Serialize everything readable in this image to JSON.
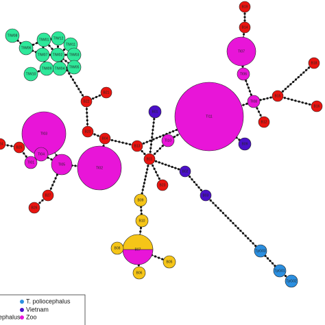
{
  "nodes": [
    {
      "label": "B19",
      "color": "#e8140f"
    },
    {
      "label": "B14",
      "color": "#e8140f"
    },
    {
      "label": "TI07",
      "color": "#e815d8"
    },
    {
      "label": "TI06",
      "color": "#e815d8"
    },
    {
      "label": "B18",
      "color": "#e8140f"
    },
    {
      "label": "B15",
      "color": "#e8140f"
    },
    {
      "label": "B16",
      "color": "#e8140f"
    },
    {
      "label": "TI08",
      "color": "#e815d8"
    },
    {
      "label": "B12",
      "color": "#e8140f"
    },
    {
      "label": "TI11",
      "color": "#e815d8"
    },
    {
      "label": "B09",
      "color": "#4a10c8"
    },
    {
      "label": "B01",
      "color": "#4a10c8"
    },
    {
      "label": "TI10",
      "color": "#e815d8"
    },
    {
      "label": "B13",
      "color": "#e8140f"
    },
    {
      "label": "B11",
      "color": "#e8140f"
    },
    {
      "label": "B23",
      "color": "#e8140f"
    },
    {
      "label": "B02",
      "color": "#4a10c8"
    },
    {
      "label": "B03",
      "color": "#4a10c8"
    },
    {
      "label": "B04",
      "color": "#e8140f"
    },
    {
      "label": "B20",
      "color": "#e8140f"
    },
    {
      "label": "B22",
      "color": "#e8140f"
    },
    {
      "label": "B21",
      "color": "#e8140f"
    },
    {
      "label": "TI03",
      "color": "#e815d8"
    },
    {
      "label": "TI02",
      "color": "#e815d8"
    },
    {
      "label": "TI05",
      "color": "#e815d8"
    },
    {
      "label": "TI04",
      "color": "#e815d8"
    },
    {
      "label": "TI01",
      "color": "#e815d8"
    },
    {
      "label": "B25",
      "color": "#e8140f"
    },
    {
      "label": "B24",
      "color": "#e8140f"
    },
    {
      "label": "B27",
      "color": "#e8140f"
    },
    {
      "label": "B26",
      "color": "#e8140f"
    },
    {
      "label": "B09",
      "color": "#f5c518"
    },
    {
      "label": "B10",
      "color": "#f5c518"
    },
    {
      "label": "B07",
      "color": "#f5c518",
      "color2": "#e815d8"
    },
    {
      "label": "B08",
      "color": "#f5c518"
    },
    {
      "label": "B05",
      "color": "#f5c518"
    },
    {
      "label": "B06",
      "color": "#f5c518"
    },
    {
      "label": "TpG03",
      "color": "#2b8fe0"
    },
    {
      "label": "TpG01",
      "color": "#2b8fe0"
    },
    {
      "label": "TpG02",
      "color": "#2b8fe0"
    },
    {
      "label": "TIW08",
      "color": "#2ee89a"
    },
    {
      "label": "TIW06",
      "color": "#2ee89a"
    },
    {
      "label": "TIW10",
      "color": "#2ee89a"
    },
    {
      "label": "TIW07",
      "color": "#2ee89a"
    },
    {
      "label": "TIW01",
      "color": "#2ee89a"
    },
    {
      "label": "TIW12",
      "color": "#2ee89a"
    },
    {
      "label": "TIW11",
      "color": "#2ee89a"
    },
    {
      "label": "TIW03",
      "color": "#2ee89a"
    },
    {
      "label": "TIW02",
      "color": "#2ee89a"
    },
    {
      "label": "TIW04",
      "color": "#2ee89a"
    },
    {
      "label": "TIW05",
      "color": "#2ee89a"
    },
    {
      "label": "TIW09",
      "color": "#2ee89a"
    }
  ],
  "legend": [
    {
      "label": "T. poliocephalus",
      "color": "#2b8fe0"
    },
    {
      "label": "Vietnam",
      "color": "#4a10c8"
    },
    {
      "label": "Zoo",
      "color": "#e815d8"
    },
    {
      "label": "ephalus"
    }
  ]
}
